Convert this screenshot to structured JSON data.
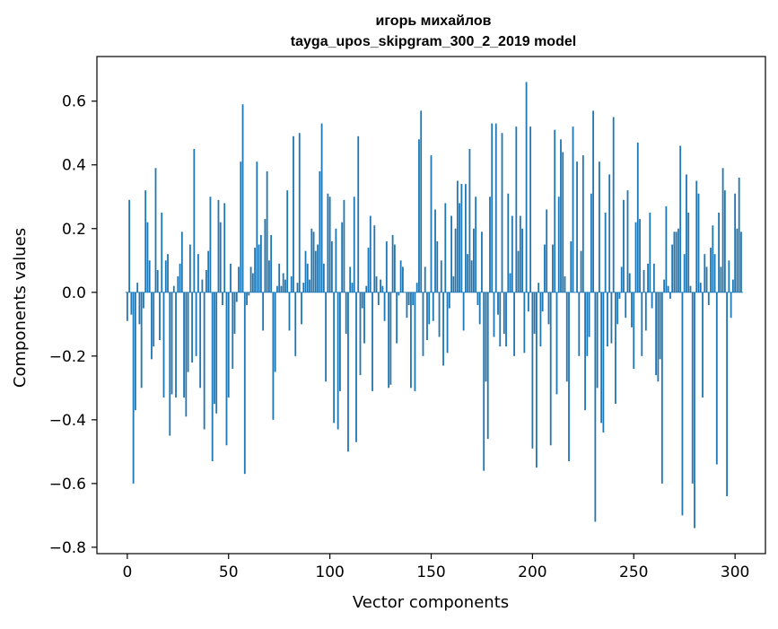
{
  "chart_data": {
    "type": "bar",
    "title": "игорь михайлов",
    "subtitle": "tayga_upos_skipgram_300_2_2019 model",
    "xlabel": "Vector components",
    "ylabel": "Components values",
    "xlim": [
      -15,
      315
    ],
    "ylim": [
      -0.82,
      0.74
    ],
    "xticks": [
      0,
      50,
      100,
      150,
      200,
      250,
      300
    ],
    "yticks": [
      -0.8,
      -0.6,
      -0.4,
      -0.2,
      0.0,
      0.2,
      0.4,
      0.6
    ],
    "ytick_labels": [
      "−0.8",
      "−0.6",
      "−0.4",
      "−0.2",
      "0.0",
      "0.2",
      "0.4",
      "0.6"
    ],
    "bar_color": "#1f77b4",
    "grid": false,
    "values": [
      -0.09,
      0.29,
      -0.07,
      -0.6,
      -0.37,
      0.03,
      -0.1,
      -0.3,
      -0.05,
      0.32,
      0.22,
      0.1,
      -0.21,
      -0.17,
      0.39,
      0.07,
      -0.15,
      0.25,
      -0.33,
      0.1,
      0.12,
      -0.45,
      -0.32,
      0.02,
      -0.33,
      0.05,
      0.09,
      0.19,
      -0.33,
      -0.39,
      -0.25,
      0.15,
      -0.22,
      0.45,
      -0.2,
      0.12,
      -0.3,
      0.04,
      -0.43,
      0.07,
      0.13,
      0.3,
      -0.53,
      -0.35,
      -0.38,
      0.29,
      0.22,
      -0.04,
      0.28,
      -0.48,
      -0.33,
      0.09,
      -0.24,
      -0.13,
      -0.03,
      0.08,
      0.41,
      0.59,
      -0.57,
      -0.04,
      -0.01,
      0.08,
      0.06,
      0.14,
      0.41,
      0.15,
      0.18,
      -0.12,
      0.23,
      0.38,
      0.1,
      0.18,
      -0.4,
      -0.25,
      0.02,
      0.09,
      0.02,
      0.06,
      0.04,
      0.32,
      -0.12,
      0.05,
      0.49,
      -0.2,
      0.03,
      0.5,
      -0.1,
      0.03,
      0.13,
      0.09,
      0.04,
      0.2,
      0.19,
      0.13,
      0.15,
      0.38,
      0.53,
      0.09,
      -0.28,
      0.31,
      0.3,
      0.16,
      -0.41,
      0.2,
      -0.43,
      -0.31,
      0.22,
      0.29,
      -0.13,
      -0.5,
      0.08,
      0.03,
      0.3,
      -0.47,
      0.49,
      -0.26,
      -0.05,
      -0.16,
      0.02,
      0.14,
      0.24,
      -0.31,
      0.21,
      0.05,
      -0.04,
      0.04,
      0.02,
      -0.09,
      0.16,
      -0.3,
      -0.29,
      0.18,
      0.15,
      -0.16,
      -0.01,
      0.1,
      0.08,
      0.0,
      -0.08,
      -0.04,
      -0.3,
      -0.04,
      -0.31,
      0.03,
      0.48,
      0.57,
      -0.2,
      0.08,
      -0.15,
      -0.1,
      0.43,
      -0.09,
      0.26,
      0.16,
      -0.14,
      0.1,
      -0.23,
      0.28,
      -0.19,
      -0.05,
      0.24,
      0.05,
      0.2,
      0.35,
      0.28,
      0.34,
      -0.12,
      0.34,
      0.12,
      0.45,
      0.1,
      0.2,
      0.3,
      -0.04,
      -0.1,
      0.19,
      -0.56,
      -0.28,
      -0.46,
      0.3,
      0.53,
      -0.14,
      0.53,
      -0.07,
      -0.17,
      0.5,
      -0.13,
      -0.17,
      0.31,
      0.06,
      0.24,
      -0.2,
      0.52,
      0.13,
      0.24,
      0.2,
      -0.19,
      0.66,
      -0.06,
      0.52,
      -0.49,
      -0.13,
      -0.55,
      0.03,
      -0.17,
      -0.06,
      0.15,
      0.26,
      -0.1,
      -0.48,
      0.15,
      0.51,
      -0.32,
      0.3,
      0.48,
      0.44,
      0.05,
      -0.28,
      -0.53,
      0.16,
      0.52,
      0.0,
      0.41,
      -0.2,
      0.13,
      0.43,
      -0.37,
      -0.2,
      -0.14,
      0.31,
      0.57,
      -0.72,
      -0.3,
      0.41,
      -0.41,
      -0.44,
      0.25,
      -0.17,
      0.37,
      -0.16,
      0.55,
      -0.35,
      -0.1,
      -0.02,
      0.08,
      0.29,
      -0.08,
      0.32,
      0.06,
      -0.11,
      -0.24,
      0.22,
      0.47,
      0.23,
      -0.2,
      0.07,
      -0.12,
      0.09,
      0.25,
      -0.05,
      0.09,
      -0.26,
      -0.28,
      -0.21,
      -0.6,
      0.04,
      0.27,
      0.02,
      -0.02,
      0.15,
      0.19,
      0.19,
      0.2,
      0.46,
      -0.7,
      0.12,
      0.37,
      0.25,
      0.02,
      -0.6,
      -0.74,
      0.35,
      0.31,
      0.03,
      -0.33,
      0.12,
      0.08,
      -0.04,
      0.14,
      0.21,
      0.12,
      -0.54,
      0.25,
      0.08,
      0.39,
      0.32,
      -0.64,
      0.1,
      -0.08,
      0.04,
      0.31,
      0.2,
      0.36,
      0.19
    ]
  }
}
